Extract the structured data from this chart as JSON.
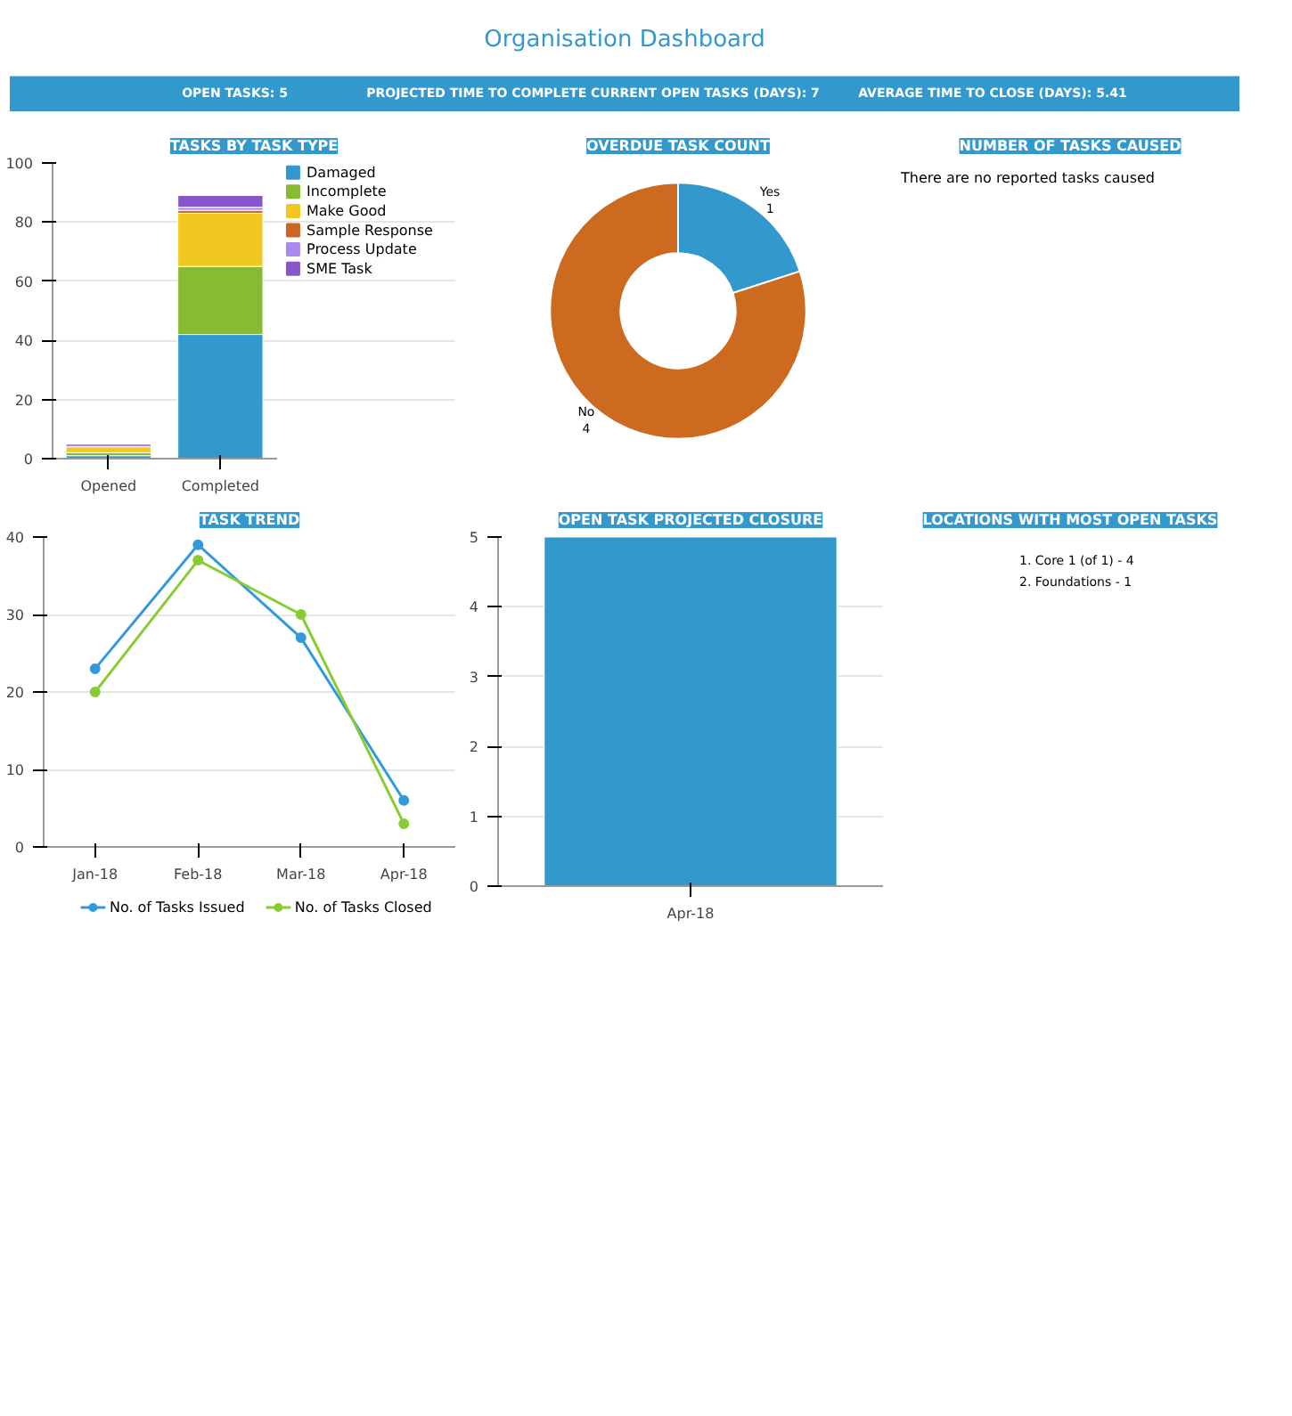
{
  "chart_data": [
    {
      "type": "other",
      "title": "Organisation Dashboard",
      "annotations": [
        "OPEN TASKS: 5",
        "PROJECTED TIME TO COMPLETE CURRENT OPEN TASKS (DAYS): 7",
        "AVERAGE TIME TO CLOSE (DAYS): 5.41"
      ]
    },
    {
      "type": "bar",
      "title": "TASKS BY TASK TYPE",
      "stacked": true,
      "categories": [
        "Opened",
        "Completed"
      ],
      "ylim": [
        0,
        100
      ],
      "yticks": [
        0,
        20,
        40,
        60,
        80,
        100
      ],
      "grid": "y",
      "legend": "right",
      "series": [
        {
          "name": "Damaged",
          "color": "#3399cc",
          "values": [
            1,
            42
          ]
        },
        {
          "name": "Incomplete",
          "color": "#88bb33",
          "values": [
            1,
            23
          ]
        },
        {
          "name": "Make Good",
          "color": "#f0c820",
          "values": [
            2,
            18
          ]
        },
        {
          "name": "Sample Response",
          "color": "#cc6622",
          "values": [
            0,
            1
          ]
        },
        {
          "name": "Process Update",
          "color": "#aa88ee",
          "values": [
            1,
            1
          ]
        },
        {
          "name": "SME Task",
          "color": "#8855cc",
          "values": [
            0,
            4
          ]
        }
      ]
    },
    {
      "type": "donut",
      "title": "OVERDUE TASK COUNT",
      "categories": [
        "Yes",
        "No"
      ],
      "values": [
        1,
        4
      ],
      "colors": [
        "#3399cc",
        "#cc6a1f"
      ],
      "data_labels": true
    },
    {
      "type": "other",
      "title": "NUMBER OF TASKS CAUSED",
      "annotations": [
        "There are no reported tasks caused"
      ]
    },
    {
      "type": "line",
      "title": "TASK TREND",
      "categories": [
        "Jan-18",
        "Feb-18",
        "Mar-18",
        "Apr-18"
      ],
      "ylim": [
        0,
        40
      ],
      "yticks": [
        0,
        10,
        20,
        30,
        40
      ],
      "grid": "y",
      "legend": "bottom",
      "marker": "circle",
      "line_style": "solid",
      "series": [
        {
          "name": "No. of Tasks Issued",
          "color": "#3399dd",
          "values": [
            23,
            39,
            27,
            6
          ]
        },
        {
          "name": "No. of Tasks Closed",
          "color": "#88cc33",
          "values": [
            20,
            37,
            30,
            3
          ]
        }
      ]
    },
    {
      "type": "bar",
      "title": "OPEN TASK PROJECTED CLOSURE",
      "categories": [
        "Apr-18"
      ],
      "ylim": [
        0,
        5
      ],
      "yticks": [
        0,
        1,
        2,
        3,
        4,
        5
      ],
      "grid": "y",
      "series": [
        {
          "color": "#3399cc",
          "values": [
            5
          ]
        }
      ]
    },
    {
      "type": "other",
      "title": "LOCATIONS WITH MOST OPEN TASKS",
      "annotations": [
        "1.  Core 1 (of 1) - 4",
        "2.  Foundations - 1"
      ]
    }
  ]
}
